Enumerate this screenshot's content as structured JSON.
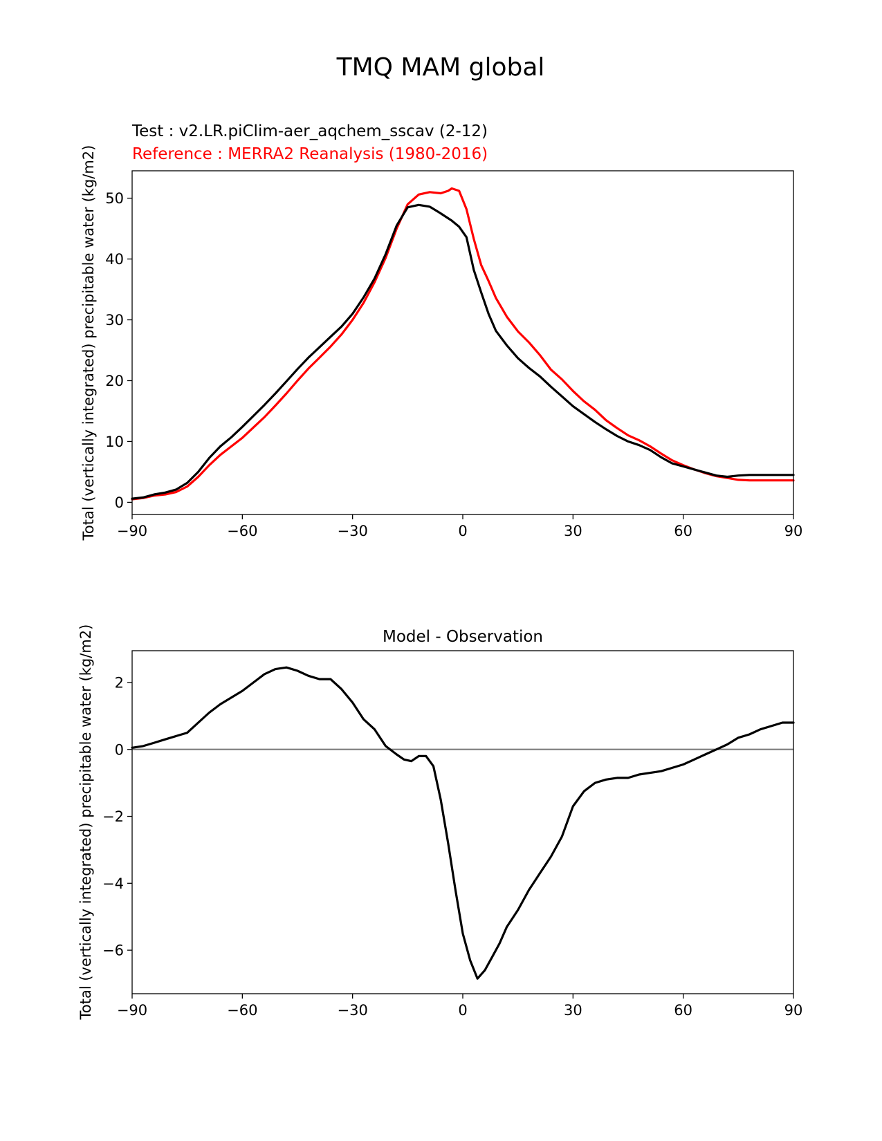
{
  "figure": {
    "title": "TMQ MAM global"
  },
  "colors": {
    "test": "#000000",
    "reference": "#ff0000",
    "zero_line": "#808080",
    "axes": "#000000"
  },
  "chart_data": [
    {
      "type": "line",
      "test_label": "Test : v2.LR.piClim-aer_aqchem_sscav (2-12)",
      "reference_label": "Reference : MERRA2 Reanalysis (1980-2016)",
      "xlabel": "",
      "ylabel": "Total (vertically integrated) precipitable water (kg/m2)",
      "xlim": [
        -90,
        90
      ],
      "ylim": [
        -2,
        54.5
      ],
      "xticks": [
        "−90",
        "−60",
        "−30",
        "0",
        "30",
        "60",
        "90"
      ],
      "xtick_values": [
        -90,
        -60,
        -30,
        0,
        30,
        60,
        90
      ],
      "yticks": [
        "0",
        "10",
        "20",
        "30",
        "40",
        "50"
      ],
      "ytick_values": [
        0,
        10,
        20,
        30,
        40,
        50
      ],
      "grid": false,
      "x": [
        -90,
        -87,
        -84,
        -81,
        -78,
        -75,
        -72,
        -69,
        -66,
        -63,
        -60,
        -57,
        -54,
        -51,
        -48,
        -45,
        -42,
        -39,
        -36,
        -33,
        -30,
        -27,
        -24,
        -21,
        -18,
        -15,
        -12,
        -9,
        -6,
        -4,
        -3,
        -1,
        1,
        3,
        5,
        7,
        9,
        12,
        15,
        18,
        21,
        24,
        27,
        30,
        33,
        36,
        39,
        42,
        45,
        48,
        51,
        54,
        57,
        60,
        63,
        66,
        69,
        72,
        75,
        78,
        81,
        84,
        87,
        90
      ],
      "series": [
        {
          "name": "test",
          "values": [
            0.6,
            0.8,
            1.3,
            1.6,
            2.1,
            3.2,
            5.0,
            7.3,
            9.2,
            10.7,
            12.4,
            14.2,
            16.0,
            17.9,
            19.9,
            21.9,
            23.8,
            25.5,
            27.2,
            28.9,
            31.0,
            33.7,
            36.8,
            40.8,
            45.5,
            48.5,
            48.9,
            48.6,
            47.5,
            46.7,
            46.3,
            45.3,
            43.6,
            38.2,
            34.5,
            31.0,
            28.2,
            25.8,
            23.7,
            22.1,
            20.7,
            19.0,
            17.4,
            15.8,
            14.5,
            13.2,
            12.0,
            10.9,
            10.0,
            9.4,
            8.6,
            7.4,
            6.4,
            5.9,
            5.4,
            4.9,
            4.4,
            4.2,
            4.4,
            4.5,
            4.5,
            4.5,
            4.5,
            4.5
          ],
          "color": "#000000"
        },
        {
          "name": "reference",
          "values": [
            0.5,
            0.7,
            1.1,
            1.3,
            1.7,
            2.6,
            4.2,
            6.1,
            7.8,
            9.2,
            10.6,
            12.3,
            14.0,
            15.9,
            17.9,
            20.0,
            22.0,
            23.8,
            25.6,
            27.6,
            30.0,
            32.8,
            36.2,
            40.2,
            45.0,
            49.0,
            50.6,
            51.0,
            50.8,
            51.2,
            51.6,
            51.2,
            48.2,
            43.3,
            39.0,
            36.4,
            33.6,
            30.5,
            28.1,
            26.3,
            24.2,
            21.8,
            20.2,
            18.3,
            16.6,
            15.2,
            13.5,
            12.2,
            11.0,
            10.2,
            9.2,
            8.0,
            6.9,
            6.1,
            5.4,
            4.8,
            4.3,
            4.0,
            3.7,
            3.6,
            3.6,
            3.6,
            3.6,
            3.6
          ],
          "color": "#ff0000"
        }
      ]
    },
    {
      "type": "line",
      "title": "Model - Observation",
      "xlabel": "",
      "ylabel": "Total (vertically integrated) precipitable water (kg/m2)",
      "xlim": [
        -90,
        90
      ],
      "ylim": [
        -7.3,
        2.95
      ],
      "xticks": [
        "−90",
        "−60",
        "−30",
        "0",
        "30",
        "60",
        "90"
      ],
      "xtick_values": [
        -90,
        -60,
        -30,
        0,
        30,
        60,
        90
      ],
      "yticks": [
        "−6",
        "−4",
        "−2",
        "0",
        "2"
      ],
      "ytick_values": [
        -6,
        -4,
        -2,
        0,
        2
      ],
      "grid": false,
      "zero_line": true,
      "x": [
        -90,
        -87,
        -84,
        -81,
        -78,
        -75,
        -72,
        -69,
        -66,
        -63,
        -60,
        -57,
        -54,
        -51,
        -48,
        -45,
        -42,
        -39,
        -36,
        -33,
        -30,
        -27,
        -24,
        -21,
        -18,
        -16,
        -14,
        -12,
        -10,
        -8,
        -6,
        -4,
        -2,
        0,
        2,
        4,
        6,
        8,
        10,
        12,
        15,
        18,
        21,
        24,
        27,
        30,
        33,
        36,
        39,
        42,
        45,
        48,
        51,
        54,
        57,
        60,
        63,
        66,
        69,
        72,
        75,
        78,
        81,
        84,
        87,
        90
      ],
      "series": [
        {
          "name": "difference",
          "values": [
            0.05,
            0.1,
            0.2,
            0.3,
            0.4,
            0.5,
            0.8,
            1.1,
            1.35,
            1.55,
            1.75,
            2.0,
            2.25,
            2.4,
            2.45,
            2.35,
            2.2,
            2.1,
            2.1,
            1.8,
            1.4,
            0.9,
            0.6,
            0.1,
            -0.15,
            -0.3,
            -0.35,
            -0.2,
            -0.2,
            -0.5,
            -1.5,
            -2.8,
            -4.2,
            -5.5,
            -6.3,
            -6.85,
            -6.6,
            -6.2,
            -5.8,
            -5.3,
            -4.8,
            -4.2,
            -3.7,
            -3.2,
            -2.6,
            -1.7,
            -1.25,
            -1.0,
            -0.9,
            -0.85,
            -0.85,
            -0.75,
            -0.7,
            -0.65,
            -0.55,
            -0.45,
            -0.3,
            -0.15,
            0.0,
            0.15,
            0.35,
            0.45,
            0.6,
            0.7,
            0.8,
            0.8
          ],
          "color": "#000000"
        }
      ]
    }
  ]
}
